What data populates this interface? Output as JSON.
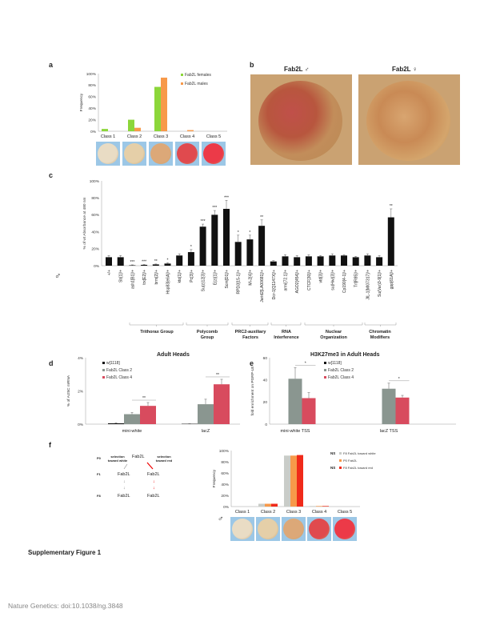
{
  "panels": {
    "a": "a",
    "b": "b",
    "c": "c",
    "d": "d",
    "e": "e",
    "f": "f"
  },
  "panel_b": {
    "left_title": "Fab2L ♂",
    "right_title": "Fab2L ♀"
  },
  "panel_c": {
    "male_symbol": "♂",
    "groups": [
      "Trithorax Group",
      "Polycomb Group",
      "PRC2-auxiliary Factors",
      "RNA Interference",
      "Nuclear Organization",
      "Chromatin Modifiers"
    ]
  },
  "panel_f": {
    "male_symbol": "♂",
    "diagram": {
      "p0": "P0",
      "f1": "F1",
      "f8": "F8",
      "fab": "Fab2L",
      "sel_white": "selection toward white",
      "sel_red": "selection toward red",
      "arrow": "↓"
    },
    "ns": "NS"
  },
  "eye_colors": [
    "#e9dcc4",
    "#e5cfa8",
    "#dca878",
    "#e04a4e",
    "#ec3a48"
  ],
  "footer": {
    "figure_title": "Supplementary Figure 1",
    "citation": "Nature Genetics: doi:10.1038/ng.3848"
  },
  "chart_data": [
    {
      "id": "a",
      "type": "bar",
      "ylabel": "Frequency",
      "ylim": [
        0,
        100
      ],
      "yticks": [
        "0%",
        "20%",
        "40%",
        "60%",
        "80%",
        "100%"
      ],
      "categories": [
        "Class 1",
        "Class 2",
        "Class 3",
        "Class 4",
        "Class 5"
      ],
      "series": [
        {
          "name": "Fab2L females",
          "color": "#8cd63a",
          "values": [
            4,
            20,
            77,
            0,
            0
          ]
        },
        {
          "name": "Fab2L males",
          "color": "#f7994a",
          "values": [
            0,
            6,
            93,
            2,
            0
          ]
        }
      ],
      "legend": "top-right"
    },
    {
      "id": "c",
      "type": "bar",
      "ylabel": "% of wt Absorbance at 480 nm",
      "ylim": [
        0,
        100
      ],
      "yticks": [
        "0%",
        "20%",
        "40%",
        "60%",
        "80%",
        "100%"
      ],
      "categories": [
        "+/+",
        "Sb[1]/+",
        "ash1[B1]/+",
        "trx[E2]/+",
        "brm[2]/+",
        "Hsp83[e6A]/+",
        "kto[1]/+",
        "Pc[3]/+",
        "Su(z)12[3]/+",
        "E(z)[1]/+",
        "Scm[D1]/+",
        "RPD3[15-1]/+",
        "Mi-2[4]/+",
        "Jarid2[LA00681]/+",
        "Dcr-1[Q1147X]/+",
        "armi[72.1]/+",
        "AGO2[454]/+",
        "CTCF[30]/+",
        "vtd[3]/+",
        "su(Hw)[3]/+",
        "Cp190[4-1]/+",
        "Trl[R85]/+",
        "JIL-1[MI07317]/+",
        "Su(Var)3-9[1]/+",
        "gpp[61A]/+"
      ],
      "series": [
        {
          "color": "#111111",
          "values": [
            10,
            10,
            0.5,
            1,
            1.5,
            2.5,
            12,
            16,
            46,
            60,
            67,
            28,
            31,
            47,
            5,
            11,
            10,
            11,
            11,
            12,
            12,
            10,
            12,
            10,
            57
          ],
          "errors": [
            2,
            2,
            0.5,
            0.5,
            0.5,
            1,
            2,
            3,
            3,
            5,
            10,
            8,
            5,
            7,
            1,
            2,
            2,
            2,
            1,
            2,
            1,
            1,
            2,
            2,
            10
          ]
        }
      ],
      "significance": [
        "",
        "",
        "***",
        "***",
        "**",
        "*",
        "",
        "*",
        "***",
        "***",
        "***",
        "*",
        "*",
        "**",
        "",
        "",
        "",
        "",
        "",
        "",
        "",
        "",
        "",
        "",
        "**"
      ]
    },
    {
      "id": "d",
      "type": "bar",
      "title": "Adult Heads",
      "ylabel": "% of Act5C mRNA",
      "ylim": [
        0,
        4
      ],
      "yticks": [
        "0%",
        "2%",
        "4%"
      ],
      "categories": [
        "mini-white",
        "lacZ"
      ],
      "series": [
        {
          "name": "w[1118]",
          "color": "#111111",
          "values": [
            0.05,
            0.02
          ],
          "errors": [
            0.03,
            0.01
          ]
        },
        {
          "name": "Fab2L Class 2",
          "color": "#8a9690",
          "values": [
            0.6,
            1.2
          ],
          "errors": [
            0.1,
            0.3
          ]
        },
        {
          "name": "Fab2L Class 4",
          "color": "#d84b5e",
          "values": [
            1.1,
            2.4
          ],
          "errors": [
            0.2,
            0.3
          ]
        }
      ],
      "significance": [
        "**",
        "**"
      ],
      "legend": "top-left"
    },
    {
      "id": "e",
      "type": "bar",
      "title": "H3K27me3 in Adult Heads",
      "ylabel": "fold enrichment on PGRP-LE",
      "ylim": [
        0,
        60
      ],
      "yticks": [
        "0",
        "20",
        "40",
        "60"
      ],
      "categories": [
        "mini-white TSS",
        "lacZ TSS"
      ],
      "series": [
        {
          "name": "w[1118]",
          "color": "#111111",
          "values": [
            0,
            0
          ],
          "errors": [
            0,
            0
          ]
        },
        {
          "name": "Fab2L Class 2",
          "color": "#8a9690",
          "values": [
            41,
            32
          ],
          "errors": [
            10,
            5
          ]
        },
        {
          "name": "Fab2L Class 4",
          "color": "#d84b5e",
          "values": [
            23.5,
            24
          ],
          "errors": [
            5,
            2
          ]
        }
      ],
      "significance": [
        "*",
        "*"
      ],
      "legend": "top-right"
    },
    {
      "id": "f",
      "type": "bar",
      "ylabel": "Frequency",
      "ylim": [
        0,
        100
      ],
      "yticks": [
        "0%",
        "20%",
        "40%",
        "60%",
        "80%",
        "100%"
      ],
      "categories": [
        "Class 1",
        "Class 2",
        "Class 3",
        "Class 4",
        "Class 5"
      ],
      "series": [
        {
          "name": "F8 Fab2L toward white",
          "color": "#c9ccc8",
          "values": [
            0,
            5,
            91,
            1,
            0
          ]
        },
        {
          "name": "P0 Fab2L",
          "color": "#f7994a",
          "values": [
            0,
            5,
            91,
            1,
            0
          ]
        },
        {
          "name": "F8 Fab2L toward red",
          "color": "#f02a1a",
          "values": [
            0,
            5,
            92,
            1,
            0
          ]
        }
      ],
      "legend": "top-right"
    }
  ]
}
